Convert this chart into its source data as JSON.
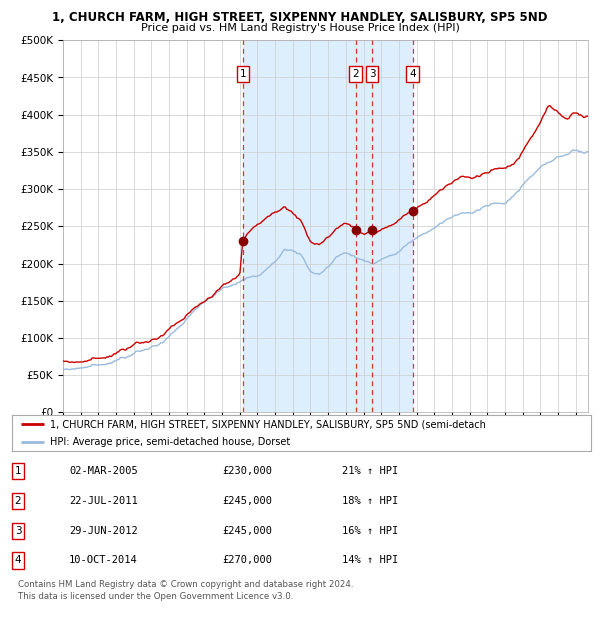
{
  "title1": "1, CHURCH FARM, HIGH STREET, SIXPENNY HANDLEY, SALISBURY, SP5 5ND",
  "title2": "Price paid vs. HM Land Registry's House Price Index (HPI)",
  "ylim": [
    0,
    500000
  ],
  "yticks": [
    0,
    50000,
    100000,
    150000,
    200000,
    250000,
    300000,
    350000,
    400000,
    450000,
    500000
  ],
  "ytick_labels": [
    "£0",
    "£50K",
    "£100K",
    "£150K",
    "£200K",
    "£250K",
    "£300K",
    "£350K",
    "£400K",
    "£450K",
    "£500K"
  ],
  "plot_bg_color": "#ffffff",
  "grid_color": "#cccccc",
  "red_line_color": "#cc0000",
  "blue_line_color": "#99bbdd",
  "sale_marker_color": "#880000",
  "dashed_line_color": "#dd3333",
  "highlight_bg_color": "#ddeeff",
  "transactions": [
    {
      "num": 1,
      "date_x": 2005.17,
      "price": 230000
    },
    {
      "num": 2,
      "date_x": 2011.55,
      "price": 245000
    },
    {
      "num": 3,
      "date_x": 2012.49,
      "price": 245000
    },
    {
      "num": 4,
      "date_x": 2014.78,
      "price": 270000
    }
  ],
  "legend_entries": [
    "1, CHURCH FARM, HIGH STREET, SIXPENNY HANDLEY, SALISBURY, SP5 5ND (semi-detach",
    "HPI: Average price, semi-detached house, Dorset"
  ],
  "table_rows": [
    {
      "num": 1,
      "date": "02-MAR-2005",
      "price": "£230,000",
      "hpi": "21% ↑ HPI"
    },
    {
      "num": 2,
      "date": "22-JUL-2011",
      "price": "£245,000",
      "hpi": "18% ↑ HPI"
    },
    {
      "num": 3,
      "date": "29-JUN-2012",
      "price": "£245,000",
      "hpi": "16% ↑ HPI"
    },
    {
      "num": 4,
      "date": "10-OCT-2014",
      "price": "£270,000",
      "hpi": "14% ↑ HPI"
    }
  ],
  "footnote1": "Contains HM Land Registry data © Crown copyright and database right 2024.",
  "footnote2": "This data is licensed under the Open Government Licence v3.0.",
  "xmin": 1995.0,
  "xmax": 2024.7
}
